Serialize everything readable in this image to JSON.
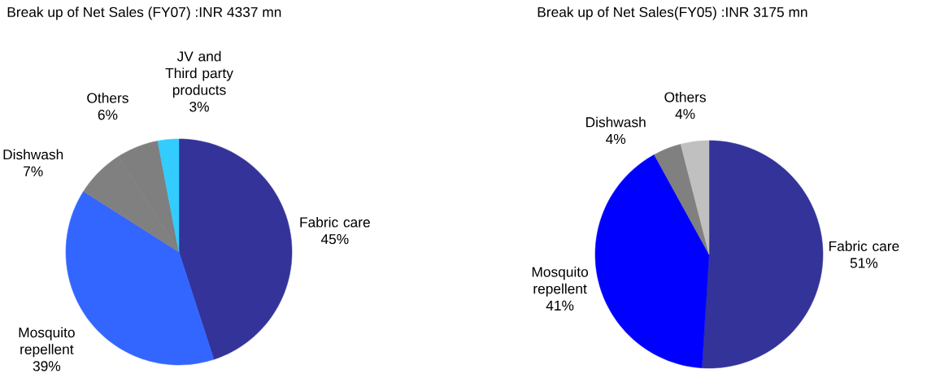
{
  "chart_data": [
    {
      "type": "pie",
      "title": "Break up of Net Sales (FY07) :INR 4337 mn",
      "categories": [
        "Fabric care",
        "Mosquito repellent",
        "Dishwash",
        "Others",
        "JV and Third party products"
      ],
      "values": [
        45,
        39,
        7,
        6,
        3
      ],
      "value_labels": [
        "45%",
        "39%",
        "7%",
        "6%",
        "3%"
      ],
      "colors": [
        "#333399",
        "#3366ff",
        "#808080",
        "#7f7f7f",
        "#33ccff"
      ]
    },
    {
      "type": "pie",
      "title": "Break up of Net Sales(FY05) :INR 3175 mn",
      "categories": [
        "Fabric care",
        "Mosquito repellent",
        "Dishwash",
        "Others"
      ],
      "values": [
        51,
        41,
        4,
        4
      ],
      "value_labels": [
        "51%",
        "41%",
        "4%",
        "4%"
      ],
      "colors": [
        "#333399",
        "#0000ff",
        "#808080",
        "#c0c0c0"
      ]
    }
  ]
}
